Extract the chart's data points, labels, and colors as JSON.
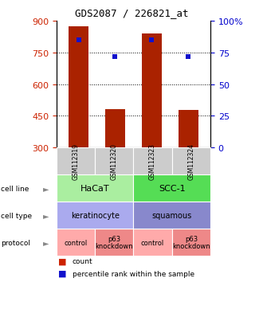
{
  "title": "GDS2087 / 226821_at",
  "samples": [
    "GSM112319",
    "GSM112320",
    "GSM112323",
    "GSM112324"
  ],
  "bar_values": [
    875,
    480,
    840,
    478
  ],
  "bar_bottom": 300,
  "pct_values": [
    85,
    72,
    85,
    72
  ],
  "ylim": [
    300,
    900
  ],
  "yticks_left": [
    300,
    450,
    600,
    750,
    900
  ],
  "yticks_right": [
    0,
    25,
    50,
    75,
    100
  ],
  "grid_yticks": [
    450,
    600,
    750
  ],
  "bar_color": "#aa2200",
  "percentile_color": "#1111cc",
  "cell_line_groups": [
    {
      "text": "HaCaT",
      "cols": [
        0,
        1
      ],
      "color": "#aaeea0"
    },
    {
      "text": "SCC-1",
      "cols": [
        2,
        3
      ],
      "color": "#55dd55"
    }
  ],
  "cell_type_groups": [
    {
      "text": "keratinocyte",
      "cols": [
        0,
        1
      ],
      "color": "#aaaaee"
    },
    {
      "text": "squamous",
      "cols": [
        2,
        3
      ],
      "color": "#8888cc"
    }
  ],
  "protocol_groups": [
    {
      "text": "control",
      "cols": [
        0
      ],
      "color": "#ffaaaa"
    },
    {
      "text": "p63\nknockdown",
      "cols": [
        1
      ],
      "color": "#ee8888"
    },
    {
      "text": "control",
      "cols": [
        2
      ],
      "color": "#ffaaaa"
    },
    {
      "text": "p63\nknockdown",
      "cols": [
        3
      ],
      "color": "#ee8888"
    }
  ],
  "row_labels": [
    "cell line",
    "cell type",
    "protocol"
  ],
  "sample_row_color": "#cccccc",
  "tick_color_left": "#cc2200",
  "tick_color_right": "#0000cc",
  "legend_count_color": "#cc2200",
  "legend_pct_color": "#1111cc"
}
